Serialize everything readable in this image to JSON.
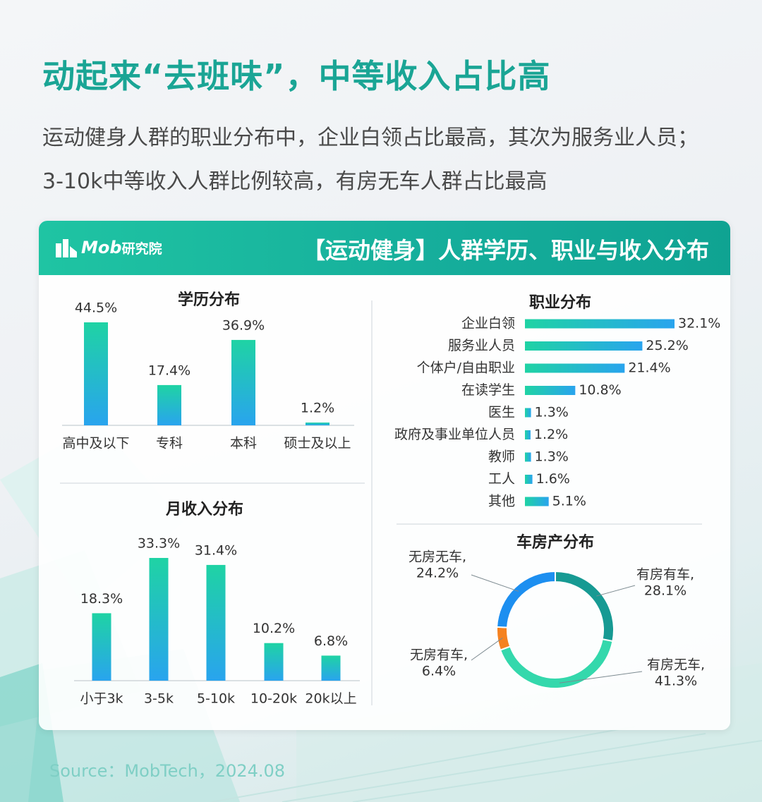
{
  "title": "动起来“去班味”，中等收入占比高",
  "subtitle_lines": [
    "运动健身人群的职业分布中，企业白领占比最高，其次为服务业人员；",
    "3-10k中等收入人群比例较高，有房无车人群占比最高"
  ],
  "card": {
    "logo_text": "Mob",
    "logo_text_cn": "研究院",
    "header_title": "【运动健身】人群学历、职业与收入分布"
  },
  "source": "Source：MobTech，2024.08",
  "colors": {
    "accent": "#1aa595",
    "bar_top": "#1fd3a4",
    "bar_bottom": "#29a4ee",
    "donut_teal": "#179a93",
    "donut_mint": "#34d8ac",
    "donut_orange": "#f58220",
    "donut_blue": "#1d8ff0"
  },
  "chart_data": [
    {
      "type": "bar",
      "title": "学历分布",
      "categories": [
        "高中及以下",
        "专科",
        "本科",
        "硕士及以上"
      ],
      "values": [
        44.5,
        17.4,
        36.9,
        1.2
      ],
      "labels": [
        "44.5%",
        "17.4%",
        "36.9%",
        "1.2%"
      ],
      "unit": "%"
    },
    {
      "type": "bar",
      "title": "月收入分布",
      "categories": [
        "小于3k",
        "3-5k",
        "5-10k",
        "10-20k",
        "20k以上"
      ],
      "values": [
        18.3,
        33.3,
        31.4,
        10.2,
        6.8
      ],
      "labels": [
        "18.3%",
        "33.3%",
        "31.4%",
        "10.2%",
        "6.8%"
      ],
      "unit": "%"
    },
    {
      "type": "bar",
      "orientation": "horizontal",
      "title": "职业分布",
      "categories": [
        "企业白领",
        "服务业人员",
        "个体户/自由职业",
        "在读学生",
        "医生",
        "政府及事业单位人员",
        "教师",
        "工人",
        "其他"
      ],
      "values": [
        32.1,
        25.2,
        21.4,
        10.8,
        1.3,
        1.2,
        1.3,
        1.6,
        5.1
      ],
      "labels": [
        "32.1%",
        "25.2%",
        "21.4%",
        "10.8%",
        "1.3%",
        "1.2%",
        "1.3%",
        "1.6%",
        "5.1%"
      ],
      "unit": "%"
    },
    {
      "type": "pie",
      "title": "车房产分布",
      "categories": [
        "有房有车",
        "有房无车",
        "无房有车",
        "无房无车"
      ],
      "values": [
        28.1,
        41.3,
        6.4,
        24.2
      ],
      "labels": [
        "28.1%",
        "41.3%",
        "6.4%",
        "24.2%"
      ],
      "unit": "%"
    }
  ]
}
